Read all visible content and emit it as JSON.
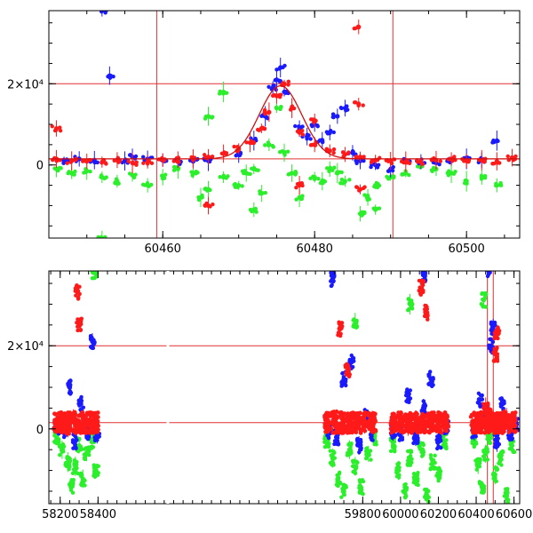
{
  "colors": {
    "red": "#ff1a1a",
    "blue": "#1a1aff",
    "green": "#2bef2b",
    "refline": "#e03030",
    "fitcurve": "#d01010",
    "frame": "#000000"
  },
  "chart_data": [
    {
      "type": "scatter",
      "title": "",
      "xlabel": "",
      "ylabel": "",
      "xlim": [
        60445,
        60507
      ],
      "ylim": [
        -18000,
        38000
      ],
      "x_ticks": [
        {
          "value": 60460,
          "label": "60460"
        },
        {
          "value": 60480,
          "label": "60480"
        },
        {
          "value": 60500,
          "label": "60500"
        }
      ],
      "y_ticks": [
        {
          "value": 0,
          "label": "0"
        },
        {
          "value": 20000,
          "label": "2×10⁴"
        }
      ],
      "horizontal_lines": [
        20000,
        1500
      ],
      "vertical_lines": [
        60459.2,
        60490.3
      ],
      "fit_curve": {
        "baseline": 1500,
        "peak": 19500,
        "center": 60475.5,
        "width": 2.8
      },
      "series": [
        {
          "color": "red",
          "points": [
            [
              60446,
              1500
            ],
            [
              60448,
              1000
            ],
            [
              60450,
              900
            ],
            [
              60452,
              700
            ],
            [
              60454,
              1200
            ],
            [
              60456,
              500
            ],
            [
              60458,
              800
            ],
            [
              60460,
              1200
            ],
            [
              60462,
              1300
            ],
            [
              60464,
              1500
            ],
            [
              60466,
              2000
            ],
            [
              60468,
              2800
            ],
            [
              60470,
              4000
            ],
            [
              60471.5,
              5500
            ],
            [
              60473,
              9000
            ],
            [
              60474,
              13000
            ],
            [
              60475,
              17000
            ],
            [
              60476,
              20000
            ],
            [
              60477,
              14000
            ],
            [
              60478,
              8000
            ],
            [
              60480,
              5000
            ],
            [
              60482,
              3500
            ],
            [
              60484,
              2600
            ],
            [
              60486,
              2000
            ],
            [
              60488,
              1200
            ],
            [
              60490,
              1000
            ],
            [
              60492,
              800
            ],
            [
              60494,
              700
            ],
            [
              60496,
              1200
            ],
            [
              60498,
              1500
            ],
            [
              60500,
              1000
            ],
            [
              60502,
              1200
            ],
            [
              60504,
              900
            ],
            [
              60506,
              1800
            ],
            [
              60446,
              9000
            ],
            [
              60485.8,
              34000
            ],
            [
              60485.8,
              15000
            ],
            [
              60478,
              -5000
            ],
            [
              60486,
              -6000
            ],
            [
              60466,
              -10000
            ],
            [
              60480,
              11000
            ]
          ]
        },
        {
          "color": "blue",
          "points": [
            [
              60447,
              1000
            ],
            [
              60449,
              1500
            ],
            [
              60451,
              1200
            ],
            [
              60452,
              38000
            ],
            [
              60453,
              22000
            ],
            [
              60455,
              1000
            ],
            [
              60456,
              2000
            ],
            [
              60458,
              1500
            ],
            [
              60460,
              1200
            ],
            [
              60462,
              800
            ],
            [
              60464,
              900
            ],
            [
              60466,
              1000
            ],
            [
              60470,
              2500
            ],
            [
              60472,
              6000
            ],
            [
              60473.5,
              12000
            ],
            [
              60474.5,
              19000
            ],
            [
              60475,
              21000
            ],
            [
              60475.5,
              24000
            ],
            [
              60476,
              18000
            ],
            [
              60478,
              9000
            ],
            [
              60479,
              7000
            ],
            [
              60480,
              10000
            ],
            [
              60481,
              6000
            ],
            [
              60482,
              8000
            ],
            [
              60483,
              12000
            ],
            [
              60484,
              14000
            ],
            [
              60485,
              3000
            ],
            [
              60486,
              1000
            ],
            [
              60488,
              0
            ],
            [
              60490,
              -1000
            ],
            [
              60492,
              1000
            ],
            [
              60494,
              800
            ],
            [
              60496,
              500
            ],
            [
              60498,
              1000
            ],
            [
              60500,
              1500
            ],
            [
              60502,
              1200
            ],
            [
              60504,
              6000
            ]
          ]
        },
        {
          "color": "green",
          "points": [
            [
              60446,
              -1000
            ],
            [
              60448,
              -2000
            ],
            [
              60450,
              -1500
            ],
            [
              60452,
              -3000
            ],
            [
              60452,
              -18000
            ],
            [
              60454,
              -4000
            ],
            [
              60456,
              -2500
            ],
            [
              60458,
              -5000
            ],
            [
              60460,
              -3000
            ],
            [
              60462,
              -1000
            ],
            [
              60464,
              -2000
            ],
            [
              60465,
              -8000
            ],
            [
              60466,
              -6000
            ],
            [
              60468,
              -3000
            ],
            [
              60470,
              -5000
            ],
            [
              60471,
              -2000
            ],
            [
              60472,
              -1000
            ],
            [
              60472,
              -11000
            ],
            [
              60473,
              -7000
            ],
            [
              60474,
              5000
            ],
            [
              60475,
              14000
            ],
            [
              60476,
              3000
            ],
            [
              60477,
              -2000
            ],
            [
              60478,
              -8000
            ],
            [
              60480,
              -3000
            ],
            [
              60481,
              -4000
            ],
            [
              60482,
              -1000
            ],
            [
              60483,
              -2000
            ],
            [
              60484,
              -4000
            ],
            [
              60486,
              -12000
            ],
            [
              60487,
              -8000
            ],
            [
              60488,
              -5000
            ],
            [
              60490,
              -3000
            ],
            [
              60492,
              -2000
            ],
            [
              60494,
              0
            ],
            [
              60496,
              -1000
            ],
            [
              60498,
              -2000
            ],
            [
              60500,
              -4000
            ],
            [
              60502,
              -3000
            ],
            [
              60504,
              -5000
            ],
            [
              60468,
              18000
            ],
            [
              60466,
              12000
            ],
            [
              60488,
              -11000
            ]
          ]
        }
      ]
    },
    {
      "type": "scatter",
      "title": "",
      "xlabel": "",
      "ylabel": "",
      "xlim": [
        58140,
        60630
      ],
      "ylim": [
        -18000,
        38000
      ],
      "x_ticks": [
        {
          "value": 58200,
          "label": "58200"
        },
        {
          "value": 58400,
          "label": "58400"
        },
        {
          "value": 59800,
          "label": "59800"
        },
        {
          "value": 60000,
          "label": "60000"
        },
        {
          "value": 60200,
          "label": "60200"
        },
        {
          "value": 60400,
          "label": "60400"
        },
        {
          "value": 60600,
          "label": "60600"
        }
      ],
      "y_ticks": [
        {
          "value": 0,
          "label": "0"
        },
        {
          "value": 20000,
          "label": "2×10⁴"
        }
      ],
      "horizontal_lines": [
        20000,
        1500
      ],
      "vertical_lines": [
        60459.2,
        60490.3
      ],
      "series": [
        {
          "color": "red",
          "points": [
            [
              58180,
              1000
            ],
            [
              58210,
              2000
            ],
            [
              58240,
              500
            ],
            [
              58270,
              2500
            ],
            [
              58300,
              1500
            ],
            [
              58330,
              800
            ],
            [
              58360,
              2200
            ],
            [
              58390,
              1200
            ],
            [
              58290,
              33000
            ],
            [
              58300,
              25000
            ],
            [
              59610,
              1500
            ],
            [
              59650,
              2500
            ],
            [
              59690,
              1000
            ],
            [
              59730,
              2000
            ],
            [
              59770,
              1800
            ],
            [
              59810,
              1200
            ],
            [
              59850,
              2400
            ],
            [
              59680,
              24000
            ],
            [
              59720,
              14000
            ],
            [
              59960,
              1500
            ],
            [
              60000,
              2200
            ],
            [
              60040,
              800
            ],
            [
              60080,
              2500
            ],
            [
              60120,
              1500
            ],
            [
              60160,
              1800
            ],
            [
              60200,
              1000
            ],
            [
              60240,
              2000
            ],
            [
              60110,
              34000
            ],
            [
              60140,
              28000
            ],
            [
              60380,
              1800
            ],
            [
              60420,
              2200
            ],
            [
              60450,
              5000
            ],
            [
              60470,
              3500
            ],
            [
              60490,
              2000
            ],
            [
              60520,
              1500
            ],
            [
              60560,
              2500
            ],
            [
              60600,
              1200
            ],
            [
              60510,
              23000
            ],
            [
              60500,
              18000
            ]
          ]
        },
        {
          "color": "blue",
          "points": [
            [
              58180,
              500
            ],
            [
              58220,
              -500
            ],
            [
              58250,
              10000
            ],
            [
              58280,
              -3000
            ],
            [
              58310,
              6000
            ],
            [
              58340,
              -1000
            ],
            [
              58370,
              21000
            ],
            [
              58395,
              -2000
            ],
            [
              59620,
              -500
            ],
            [
              59660,
              -2000
            ],
            [
              59700,
              12000
            ],
            [
              59740,
              16000
            ],
            [
              59780,
              -4000
            ],
            [
              59820,
              3000
            ],
            [
              59850,
              -1000
            ],
            [
              59640,
              36000
            ],
            [
              59960,
              -500
            ],
            [
              60000,
              -1000
            ],
            [
              60040,
              8000
            ],
            [
              60080,
              -2000
            ],
            [
              60120,
              5000
            ],
            [
              60160,
              12000
            ],
            [
              60200,
              -3000
            ],
            [
              60240,
              500
            ],
            [
              60120,
              37000
            ],
            [
              60390,
              -500
            ],
            [
              60420,
              7000
            ],
            [
              60450,
              4000
            ],
            [
              60465,
              38000
            ],
            [
              60480,
              20000
            ],
            [
              60490,
              24000
            ],
            [
              60510,
              -3000
            ],
            [
              60540,
              6000
            ],
            [
              60580,
              -1000
            ],
            [
              60610,
              1000
            ]
          ]
        },
        {
          "color": "green",
          "points": [
            [
              58180,
              -2000
            ],
            [
              58210,
              -5000
            ],
            [
              58240,
              -8000
            ],
            [
              58260,
              -14000
            ],
            [
              58280,
              -9000
            ],
            [
              58300,
              -4000
            ],
            [
              58320,
              -12000
            ],
            [
              58340,
              -6000
            ],
            [
              58370,
              -3000
            ],
            [
              58390,
              -10000
            ],
            [
              58380,
              38000
            ],
            [
              59610,
              -3000
            ],
            [
              59640,
              -7000
            ],
            [
              59670,
              -12000
            ],
            [
              59700,
              -15000
            ],
            [
              59730,
              -5000
            ],
            [
              59760,
              -9000
            ],
            [
              59790,
              -14000
            ],
            [
              59830,
              -6000
            ],
            [
              59860,
              -2000
            ],
            [
              59760,
              26000
            ],
            [
              59960,
              -4000
            ],
            [
              59990,
              -10000
            ],
            [
              60020,
              -15000
            ],
            [
              60050,
              -7000
            ],
            [
              60080,
              -12000
            ],
            [
              60110,
              -5000
            ],
            [
              60140,
              -16000
            ],
            [
              60170,
              -8000
            ],
            [
              60200,
              -11000
            ],
            [
              60230,
              -3000
            ],
            [
              60050,
              30000
            ],
            [
              60390,
              -3000
            ],
            [
              60410,
              -9000
            ],
            [
              60430,
              -14000
            ],
            [
              60450,
              -6000
            ],
            [
              60470,
              -2000
            ],
            [
              60500,
              -11000
            ],
            [
              60530,
              -7000
            ],
            [
              60560,
              -16000
            ],
            [
              60590,
              -4000
            ],
            [
              60440,
              31000
            ]
          ]
        }
      ]
    }
  ]
}
